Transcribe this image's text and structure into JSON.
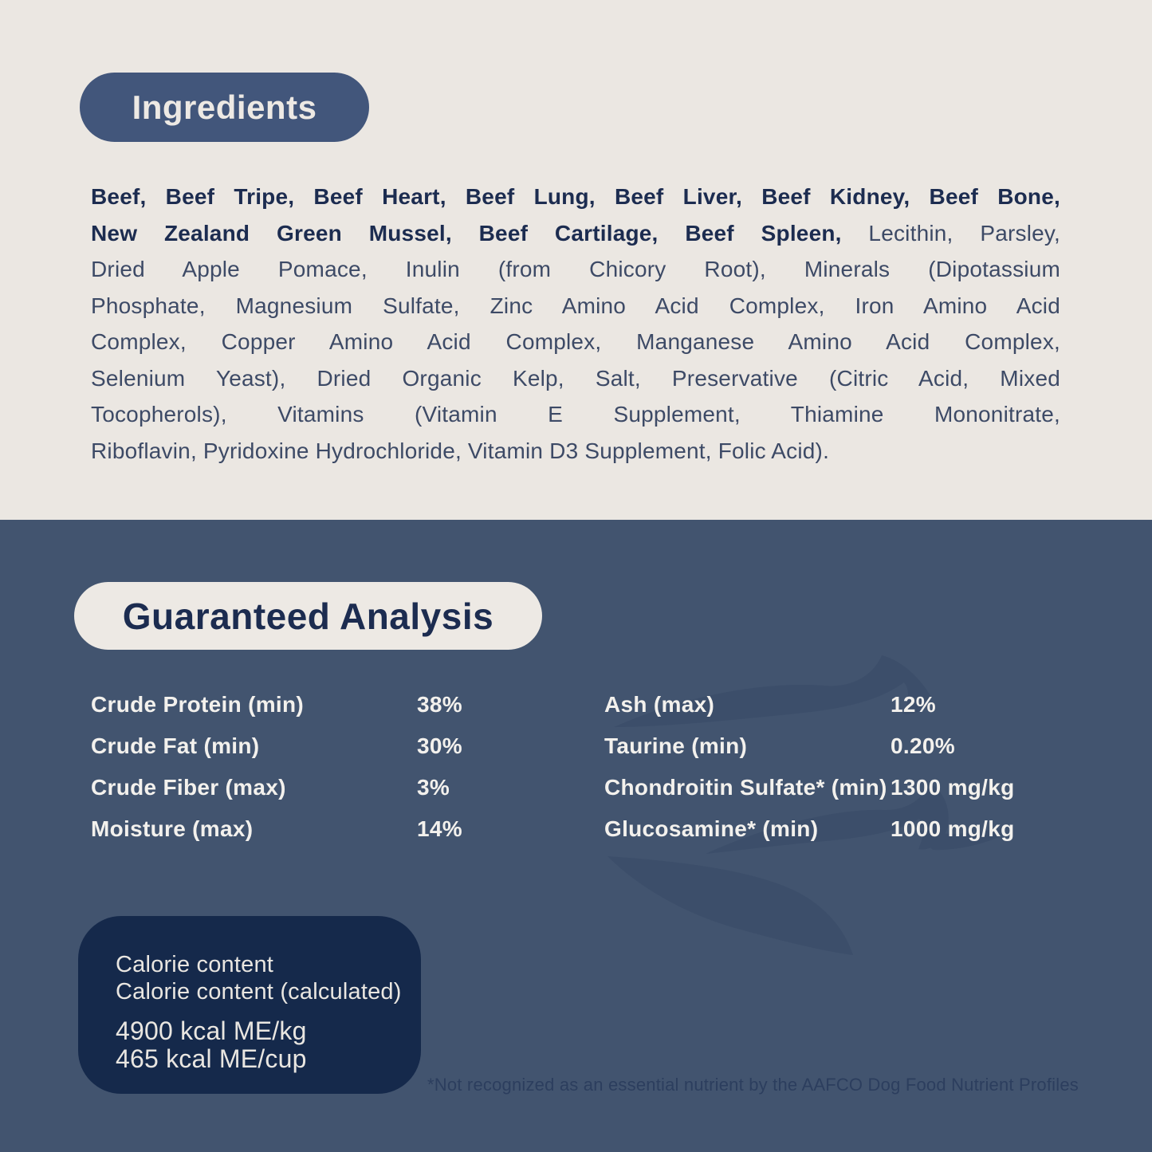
{
  "colors": {
    "cream_background": "#EBE7E2",
    "slate_background": "#42546F",
    "navy_pill": "#42567B",
    "navy_text": "#1C2C50",
    "body_text": "#3D4A66",
    "light_text": "#F3F1ED",
    "calorie_box_background": "#15294B",
    "watermark": "#3C4E6A",
    "footnote_text": "#2C3E5E"
  },
  "ingredients": {
    "heading": "Ingredients",
    "lines": [
      {
        "justify": true,
        "segments": [
          {
            "text": "Beef, Beef Tripe, Beef Heart, Beef Lung, Beef Liver, Beef Kidney, Beef Bone,",
            "bold": true
          }
        ]
      },
      {
        "justify": true,
        "segments": [
          {
            "text": "New Zealand Green Mussel, Beef Cartilage, Beef Spleen,",
            "bold": true
          },
          {
            "text": " Lecithin, Parsley,",
            "bold": false
          }
        ]
      },
      {
        "justify": true,
        "segments": [
          {
            "text": "Dried Apple Pomace, Inulin (from Chicory Root), Minerals (Dipotassium",
            "bold": false
          }
        ]
      },
      {
        "justify": true,
        "segments": [
          {
            "text": "Phosphate, Magnesium Sulfate, Zinc Amino Acid Complex, Iron Amino Acid",
            "bold": false
          }
        ]
      },
      {
        "justify": true,
        "segments": [
          {
            "text": "Complex, Copper Amino Acid Complex, Manganese Amino Acid Complex,",
            "bold": false
          }
        ]
      },
      {
        "justify": true,
        "segments": [
          {
            "text": "Selenium Yeast), Dried Organic Kelp, Salt, Preservative (Citric Acid, Mixed",
            "bold": false
          }
        ]
      },
      {
        "justify": true,
        "segments": [
          {
            "text": "Tocopherols), Vitamins (Vitamin E Supplement, Thiamine Mononitrate,",
            "bold": false
          }
        ]
      },
      {
        "justify": false,
        "segments": [
          {
            "text": "Riboflavin, Pyridoxine Hydrochloride, Vitamin D3 Supplement, Folic Acid).",
            "bold": false
          }
        ]
      }
    ]
  },
  "guaranteed_analysis": {
    "heading": "Guaranteed Analysis",
    "columns": [
      {
        "rows": [
          {
            "label": "Crude Protein (min)",
            "value": "38%"
          },
          {
            "label": "Crude Fat (min)",
            "value": "30%"
          },
          {
            "label": "Crude Fiber (max)",
            "value": "3%"
          },
          {
            "label": "Moisture (max)",
            "value": "14%"
          }
        ]
      },
      {
        "rows": [
          {
            "label": "Ash (max)",
            "value": "12%"
          },
          {
            "label": "Taurine (min)",
            "value": "0.20%"
          },
          {
            "label": "Chondroitin Sulfate* (min)",
            "value": "1300 mg/kg"
          },
          {
            "label": "Glucosamine* (min)",
            "value": "1000 mg/kg"
          }
        ]
      }
    ]
  },
  "calorie_content": {
    "title_lines": [
      "Calorie content",
      "Calorie content (calculated)"
    ],
    "value_lines": [
      "4900 kcal ME/kg",
      "465 kcal ME/cup"
    ]
  },
  "footnote": "*Not recognized as an essential nutrient by the AAFCO Dog Food Nutrient Profiles",
  "watermark_icon": "wave-swirl"
}
